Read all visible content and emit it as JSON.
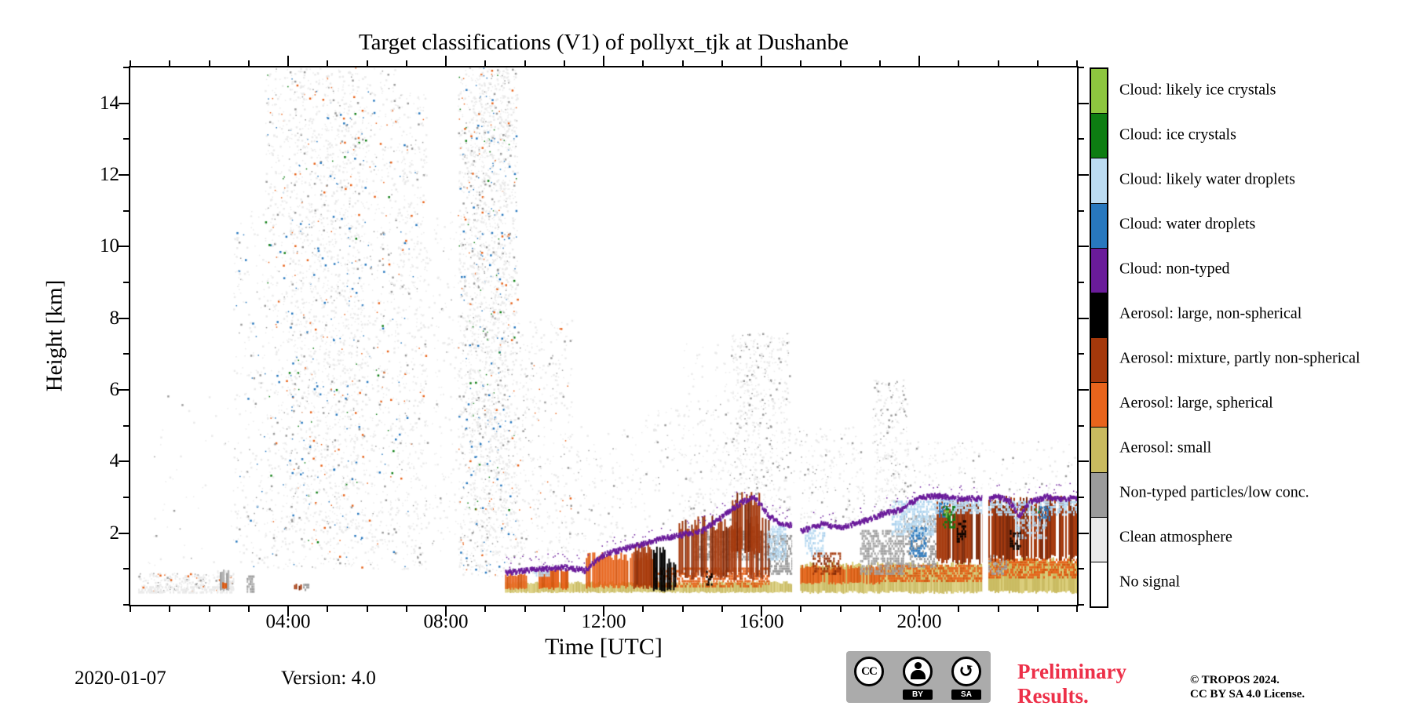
{
  "figure": {
    "date": "2020-01-07",
    "version": "Version: 4.0",
    "preliminary_line1": "Preliminary",
    "preliminary_line2": "Results.",
    "preliminary_color": "#ED3049",
    "copyright_line1": "© TROPOS 2024.",
    "copyright_line2": "CC BY SA 4.0 License.",
    "cc": {
      "cc": "CC",
      "by": "BY",
      "sa": "SA",
      "sa_arrow": "↺"
    }
  },
  "chart_data": {
    "type": "heatmap",
    "title": "Target classifications (V1) of pollyxt_tjk at Dushanbe",
    "xlabel": "Time [UTC]",
    "ylabel": "Height [km]",
    "x_range_hours": [
      0,
      24
    ],
    "x_major_hours": [
      4,
      8,
      12,
      16,
      20
    ],
    "x_major_ticks": [
      "04:00",
      "08:00",
      "12:00",
      "16:00",
      "20:00"
    ],
    "x_minor_step_hours": 1,
    "y_range_km": [
      0,
      15
    ],
    "y_major_ticks": [
      2,
      4,
      6,
      8,
      10,
      12,
      14
    ],
    "y_minor_step_km": 1,
    "grid": false,
    "legend_position": "right",
    "classes": [
      {
        "id": "likely_ice",
        "label": "Cloud: likely ice crystals",
        "color": "#8DC63F"
      },
      {
        "id": "ice",
        "label": "Cloud: ice crystals",
        "color": "#0D7D12"
      },
      {
        "id": "likely_water",
        "label": "Cloud: likely water droplets",
        "color": "#BCDCF2",
        "color2": "#A9CFEC"
      },
      {
        "id": "water",
        "label": "Cloud: water droplets",
        "color": "#2878BE"
      },
      {
        "id": "cloud_nontyped",
        "label": "Cloud: non-typed",
        "color": "#6A1B9A"
      },
      {
        "id": "aerosol_large_nonspherical",
        "label": "Aerosol: large, non-spherical",
        "color": "#000000"
      },
      {
        "id": "aerosol_mixture",
        "label": "Aerosol: mixture, partly non-spherical",
        "color": "#A4380B",
        "color2": "#7C2606"
      },
      {
        "id": "aerosol_large_spherical",
        "label": "Aerosol: large, spherical",
        "color": "#E8641C",
        "color2": "#D4560F"
      },
      {
        "id": "aerosol_small",
        "label": "Aerosol: small",
        "color": "#C9BA5F",
        "color2": "#D9CC78"
      },
      {
        "id": "nontyped",
        "label": "Non-typed particles/low conc.",
        "color": "#9B9B9B",
        "color2": "#B2B2B2"
      },
      {
        "id": "clean",
        "label": "Clean atmosphere",
        "color": "#EAEAEA"
      },
      {
        "id": "no_signal",
        "label": "No signal",
        "color": "#FFFFFF"
      }
    ],
    "features": {
      "speckle": [
        {
          "t0": 0.2,
          "t1": 2.6,
          "h0": 0.35,
          "h1": 0.9,
          "n": 260,
          "palette": {
            "clean": 0.75,
            "nontyped": 0.18,
            "aerosol_large_spherical": 0.07
          }
        },
        {
          "t0": 0.3,
          "t1": 2.6,
          "h0": 1.0,
          "h1": 6.0,
          "n": 45,
          "palette": {
            "clean": 0.85,
            "nontyped": 0.15
          }
        },
        {
          "t0": 2.6,
          "t1": 3.4,
          "h0": 0.9,
          "h1": 11.0,
          "n": 220,
          "palette": {
            "clean": 0.82,
            "nontyped": 0.12,
            "water": 0.06
          }
        },
        {
          "t0": 3.4,
          "t1": 6.7,
          "h0": 1.0,
          "h1": 15.0,
          "n": 2100,
          "palette": {
            "clean": 0.8,
            "nontyped": 0.09,
            "water": 0.05,
            "ice": 0.02,
            "aerosol_large_spherical": 0.04
          }
        },
        {
          "t0": 4.0,
          "t1": 5.9,
          "h0": 2.0,
          "h1": 15.0,
          "n": 800,
          "palette": {
            "clean": 0.84,
            "nontyped": 0.08,
            "water": 0.04,
            "aerosol_large_spherical": 0.04
          }
        },
        {
          "t0": 6.7,
          "t1": 7.5,
          "h0": 1.0,
          "h1": 14.3,
          "n": 600,
          "palette": {
            "clean": 0.84,
            "nontyped": 0.08,
            "water": 0.04,
            "aerosol_large_spherical": 0.04
          }
        },
        {
          "t0": 7.5,
          "t1": 8.3,
          "h0": 1.5,
          "h1": 11.0,
          "n": 150,
          "palette": {
            "clean": 0.88,
            "nontyped": 0.12
          }
        },
        {
          "t0": 8.3,
          "t1": 9.8,
          "h0": 0.8,
          "h1": 15.0,
          "n": 1900,
          "palette": {
            "clean": 0.8,
            "nontyped": 0.09,
            "water": 0.05,
            "ice": 0.02,
            "aerosol_large_spherical": 0.04
          }
        },
        {
          "t0": 8.6,
          "t1": 9.6,
          "h0": 2.0,
          "h1": 15.0,
          "n": 700,
          "palette": {
            "clean": 0.85,
            "nontyped": 0.09,
            "water": 0.06
          }
        },
        {
          "t0": 9.8,
          "t1": 11.2,
          "h0": 0.9,
          "h1": 8.0,
          "n": 420,
          "palette": {
            "clean": 0.84,
            "nontyped": 0.1,
            "aerosol_large_spherical": 0.06
          }
        },
        {
          "t0": 11.2,
          "t1": 13.0,
          "h0": 1.2,
          "h1": 5.0,
          "n": 150,
          "palette": {
            "clean": 0.88,
            "nontyped": 0.12
          }
        },
        {
          "t0": 13.0,
          "t1": 15.2,
          "h0": 2.2,
          "h1": 5.5,
          "n": 160,
          "palette": {
            "clean": 0.86,
            "nontyped": 0.14
          }
        },
        {
          "t0": 14.0,
          "t1": 15.2,
          "h0": 2.2,
          "h1": 7.4,
          "n": 120,
          "palette": {
            "clean": 0.85,
            "nontyped": 0.15
          }
        },
        {
          "t0": 15.2,
          "t1": 16.7,
          "h0": 2.6,
          "h1": 7.6,
          "n": 620,
          "palette": {
            "clean": 0.78,
            "nontyped": 0.22
          }
        },
        {
          "t0": 16.7,
          "t1": 18.6,
          "h0": 2.3,
          "h1": 5.0,
          "n": 220,
          "palette": {
            "clean": 0.84,
            "nontyped": 0.16
          }
        },
        {
          "t0": 18.8,
          "t1": 19.7,
          "h0": 2.5,
          "h1": 6.3,
          "n": 300,
          "palette": {
            "clean": 0.8,
            "nontyped": 0.2
          }
        },
        {
          "t0": 19.7,
          "t1": 24.0,
          "h0": 3.15,
          "h1": 4.6,
          "n": 170,
          "palette": {
            "clean": 0.84,
            "nontyped": 0.16
          }
        }
      ],
      "patches": [
        {
          "class": "clean",
          "t0": 0.2,
          "t1": 2.6,
          "h0": 0.38,
          "h1": 0.58,
          "density": 0.55,
          "jitter": 0.08
        },
        {
          "class": "clean",
          "t0": 2.2,
          "t1": 2.62,
          "h0": 0.4,
          "h1": 1.0,
          "density": 0.45,
          "jitter": 0.1
        },
        {
          "class": "nontyped",
          "t0": 2.27,
          "t1": 2.47,
          "h0": 0.4,
          "h1": 0.95,
          "density": 0.8,
          "jitter": 0.06
        },
        {
          "class": "aerosol_large_spherical",
          "t0": 2.33,
          "t1": 2.41,
          "h0": 0.45,
          "h1": 0.62,
          "density": 1,
          "jitter": 0.02
        },
        {
          "class": "nontyped",
          "t0": 2.95,
          "t1": 3.12,
          "h0": 0.4,
          "h1": 0.85,
          "density": 0.75,
          "jitter": 0.05
        },
        {
          "class": "aerosol_mixture",
          "t0": 4.15,
          "t1": 4.33,
          "h0": 0.42,
          "h1": 0.56,
          "density": 0.9,
          "jitter": 0.03
        },
        {
          "class": "nontyped",
          "t0": 4.38,
          "t1": 4.5,
          "h0": 0.45,
          "h1": 0.62,
          "density": 0.6,
          "jitter": 0.04
        },
        {
          "class": "aerosol_small",
          "t0": 9.5,
          "t1": 16.78,
          "h0": 0.35,
          "h1": 0.62,
          "density": 1,
          "jitter": 0.05
        },
        {
          "class": "aerosol_small",
          "t0": 16.98,
          "t1": 21.6,
          "h0": 0.35,
          "h1": 1.12,
          "density": 1,
          "jitter": 0.09
        },
        {
          "class": "aerosol_small",
          "t0": 21.75,
          "t1": 24,
          "h0": 0.35,
          "h1": 1.25,
          "density": 1,
          "jitter": 0.1
        },
        {
          "class": "aerosol_large_spherical",
          "t0": 9.5,
          "t1": 10.05,
          "h0": 0.45,
          "h1": 0.82,
          "density": 0.95,
          "jitter": 0.06
        },
        {
          "class": "aerosol_large_spherical",
          "t0": 10.35,
          "t1": 11.1,
          "h0": 0.45,
          "h1": 0.95,
          "density": 0.9,
          "jitter": 0.08
        },
        {
          "class": "aerosol_large_spherical",
          "t0": 11.55,
          "t1": 13.3,
          "h0": 0.5,
          "h1": 1.35,
          "density": 0.92,
          "jitter": 0.12
        },
        {
          "class": "aerosol_large_spherical",
          "t0": 13.3,
          "t1": 16.2,
          "h0": 0.55,
          "h1": 1.05,
          "density": 0.6,
          "jitter": 0.1
        },
        {
          "class": "aerosol_large_spherical",
          "t0": 16.98,
          "t1": 19.0,
          "h0": 0.6,
          "h1": 1.05,
          "density": 0.8,
          "jitter": 0.08
        },
        {
          "class": "aerosol_large_spherical",
          "t0": 19.0,
          "t1": 21.6,
          "h0": 0.7,
          "h1": 1.15,
          "density": 0.65,
          "jitter": 0.08
        },
        {
          "class": "aerosol_large_spherical",
          "t0": 21.75,
          "t1": 24,
          "h0": 0.8,
          "h1": 1.3,
          "density": 0.65,
          "jitter": 0.1
        },
        {
          "class": "nontyped",
          "t0": 14.3,
          "t1": 16.2,
          "h0": 1.3,
          "h1": 2.1,
          "density": 0.55,
          "jitter": 0.2
        },
        {
          "class": "nontyped",
          "t0": 16.2,
          "t1": 16.78,
          "h0": 0.9,
          "h1": 2.0,
          "density": 0.7,
          "jitter": 0.2
        },
        {
          "class": "nontyped",
          "t0": 18.5,
          "t1": 19.6,
          "h0": 0.9,
          "h1": 2.1,
          "density": 0.6,
          "jitter": 0.2
        },
        {
          "class": "nontyped",
          "t0": 19.6,
          "t1": 20.4,
          "h0": 1.1,
          "h1": 2.5,
          "density": 0.5,
          "jitter": 0.2
        },
        {
          "class": "nontyped",
          "t0": 21.75,
          "t1": 22.2,
          "h0": 0.9,
          "h1": 1.4,
          "density": 0.45,
          "jitter": 0.1
        },
        {
          "class": "aerosol_mixture",
          "t0": 12.75,
          "t1": 13.3,
          "h0": 0.5,
          "h1": 1.6,
          "density": 0.8,
          "jitter": 0.15
        },
        {
          "class": "aerosol_mixture",
          "t0": 13.9,
          "t1": 16.2,
          "h0": 0.8,
          "h1": 2.3,
          "density": 0.85,
          "jitter": 0.25
        },
        {
          "class": "aerosol_mixture",
          "t0": 15.25,
          "t1": 15.95,
          "h0": 1.5,
          "h1": 2.95,
          "density": 0.8,
          "jitter": 0.2
        },
        {
          "class": "aerosol_mixture",
          "t0": 17.3,
          "t1": 18.0,
          "h0": 0.9,
          "h1": 1.5,
          "density": 0.5,
          "jitter": 0.12
        },
        {
          "class": "aerosol_mixture",
          "t0": 20.4,
          "t1": 21.6,
          "h0": 1.2,
          "h1": 2.75,
          "density": 0.82,
          "jitter": 0.2
        },
        {
          "class": "aerosol_mixture",
          "t0": 21.75,
          "t1": 24,
          "h0": 1.3,
          "h1": 2.85,
          "density": 0.88,
          "jitter": 0.2
        },
        {
          "class": "aerosol_large_nonspherical",
          "t0": 13.25,
          "t1": 13.55,
          "h0": 0.4,
          "h1": 1.55,
          "density": 0.9,
          "jitter": 0.1
        },
        {
          "class": "aerosol_large_nonspherical",
          "t0": 13.6,
          "t1": 13.85,
          "h0": 0.45,
          "h1": 1.2,
          "density": 0.85,
          "jitter": 0.1
        },
        {
          "class": "aerosol_large_nonspherical",
          "t0": 14.6,
          "t1": 14.75,
          "h0": 0.6,
          "h1": 1.0,
          "density": 0.6,
          "jitter": 0.08
        },
        {
          "class": "aerosol_large_nonspherical",
          "t0": 20.95,
          "t1": 21.15,
          "h0": 1.8,
          "h1": 2.4,
          "density": 0.5,
          "jitter": 0.1
        },
        {
          "class": "aerosol_large_nonspherical",
          "t0": 22.3,
          "t1": 22.55,
          "h0": 1.6,
          "h1": 2.1,
          "density": 0.4,
          "jitter": 0.1
        },
        {
          "class": "likely_water",
          "t0": 10.2,
          "t1": 10.6,
          "h0": 0.85,
          "h1": 1.05,
          "density": 0.7,
          "jitter": 0.05
        },
        {
          "class": "likely_water",
          "t0": 16.15,
          "t1": 16.6,
          "h0": 1.3,
          "h1": 2.25,
          "density": 0.6,
          "jitter": 0.15
        },
        {
          "class": "likely_water",
          "t0": 17.1,
          "t1": 17.6,
          "h0": 1.4,
          "h1": 2.2,
          "density": 0.5,
          "jitter": 0.15
        },
        {
          "class": "likely_water",
          "t0": 19.3,
          "t1": 20.4,
          "h0": 2.0,
          "h1": 2.95,
          "density": 0.6,
          "jitter": 0.15
        },
        {
          "class": "likely_water",
          "t0": 20.4,
          "t1": 21.6,
          "h0": 2.6,
          "h1": 3.0,
          "density": 0.7,
          "jitter": 0.08
        },
        {
          "class": "likely_water",
          "t0": 21.75,
          "t1": 24,
          "h0": 2.55,
          "h1": 2.95,
          "density": 0.6,
          "jitter": 0.1
        },
        {
          "class": "likely_water",
          "t0": 22.4,
          "t1": 23.2,
          "h0": 1.9,
          "h1": 2.5,
          "density": 0.4,
          "jitter": 0.15
        },
        {
          "class": "water",
          "t0": 19.75,
          "t1": 20.15,
          "h0": 1.4,
          "h1": 2.2,
          "density": 0.5,
          "jitter": 0.12
        },
        {
          "class": "water",
          "t0": 20.5,
          "t1": 20.7,
          "h0": 2.5,
          "h1": 2.9,
          "density": 0.5,
          "jitter": 0.08
        },
        {
          "class": "water",
          "t0": 23.0,
          "t1": 23.3,
          "h0": 2.4,
          "h1": 2.8,
          "density": 0.4,
          "jitter": 0.1
        },
        {
          "class": "ice",
          "t0": 20.6,
          "t1": 20.9,
          "h0": 2.2,
          "h1": 2.8,
          "density": 0.5,
          "jitter": 0.1
        },
        {
          "class": "likely_ice",
          "t0": 20.63,
          "t1": 20.78,
          "h0": 2.5,
          "h1": 2.72,
          "density": 0.45,
          "jitter": 0.05
        },
        {
          "class": "ice",
          "t0": 22.9,
          "t1": 23.05,
          "h0": 2.55,
          "h1": 2.75,
          "density": 0.4,
          "jitter": 0.05
        }
      ],
      "fringes": [
        {
          "class": "cloud_nontyped",
          "thickness": 0.12,
          "points": [
            [
              9.5,
              0.95
            ],
            [
              10.0,
              1.0
            ],
            [
              10.5,
              1.05
            ],
            [
              11.0,
              1.08
            ],
            [
              11.5,
              1.0
            ],
            [
              12.0,
              1.45
            ],
            [
              12.5,
              1.6
            ],
            [
              13.0,
              1.75
            ],
            [
              13.5,
              1.9
            ],
            [
              14.0,
              2.0
            ],
            [
              14.5,
              2.12
            ],
            [
              15.0,
              2.5
            ],
            [
              15.5,
              2.92
            ],
            [
              15.8,
              3.05
            ],
            [
              16.2,
              2.5
            ],
            [
              16.5,
              2.3
            ],
            [
              16.78,
              2.25
            ]
          ]
        },
        {
          "class": "cloud_nontyped",
          "thickness": 0.12,
          "points": [
            [
              16.98,
              2.1
            ],
            [
              17.5,
              2.3
            ],
            [
              18.0,
              2.2
            ],
            [
              18.5,
              2.35
            ],
            [
              19.0,
              2.55
            ],
            [
              19.5,
              2.7
            ],
            [
              20.0,
              3.05
            ],
            [
              20.5,
              3.08
            ],
            [
              21.0,
              3.0
            ],
            [
              21.6,
              3.02
            ]
          ]
        },
        {
          "class": "cloud_nontyped",
          "thickness": 0.12,
          "points": [
            [
              21.75,
              3.0
            ],
            [
              22.0,
              3.06
            ],
            [
              22.3,
              2.9
            ],
            [
              22.5,
              2.5
            ],
            [
              22.8,
              2.92
            ],
            [
              23.2,
              3.06
            ],
            [
              23.6,
              3.0
            ],
            [
              24.0,
              3.05
            ]
          ]
        }
      ],
      "gaps": [
        {
          "t0": 16.78,
          "t1": 16.98,
          "h0": 0.25,
          "h1": 3.4
        },
        {
          "t0": 21.6,
          "t1": 21.75,
          "h0": 0.25,
          "h1": 3.4
        }
      ]
    }
  }
}
